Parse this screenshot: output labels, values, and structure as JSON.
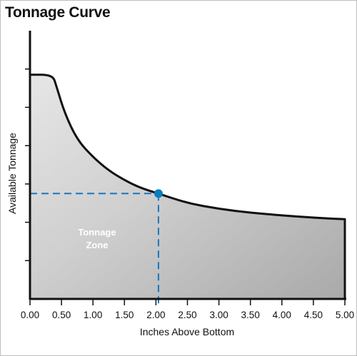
{
  "chart_data": {
    "type": "area",
    "title": "Tonnage Curve",
    "xlabel": "Inches Above Bottom",
    "ylabel": "Available Tonnage",
    "xlim": [
      0,
      5
    ],
    "x_ticks": [
      "0.00",
      "0.50",
      "1.00",
      "1.50",
      "2.00",
      "2.50",
      "3.00",
      "3.50",
      "4.00",
      "4.50",
      "5.00"
    ],
    "grid": false,
    "legend": "none",
    "series": [
      {
        "x": [
          0.0,
          0.36,
          0.42,
          0.55,
          0.75,
          1.0,
          1.25,
          1.5,
          1.75,
          2.04,
          2.5,
          3.0,
          3.5,
          4.0,
          4.5,
          5.0
        ],
        "y": [
          5.85,
          5.85,
          5.55,
          4.85,
          4.15,
          3.7,
          3.35,
          3.1,
          2.9,
          2.75,
          2.5,
          2.35,
          2.25,
          2.18,
          2.12,
          2.08
        ]
      }
    ],
    "marker": {
      "x": 2.04,
      "y": 2.75
    },
    "annotation": {
      "line1": "Tonnage",
      "line2": "Zone"
    },
    "colors": {
      "fill_light": "#e6e6e6",
      "fill_dark": "#a9a9a9",
      "curve": "#111111",
      "marker": "#0a7cc2",
      "guide": "#1b77bd"
    }
  }
}
